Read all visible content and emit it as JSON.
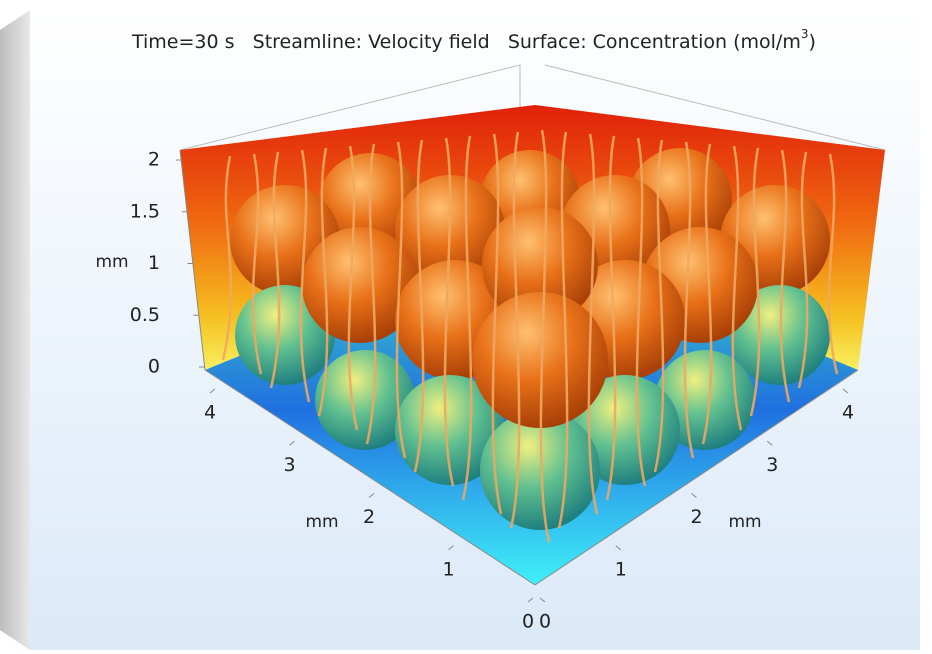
{
  "chart_data": {
    "type": "surface3d",
    "title": "Time=30 s   Streamline: Velocity field   Surface: Concentration (mol/m",
    "title_superscript": "3",
    "title_end": ")",
    "zlabel": "mm",
    "zlim": [
      0,
      2
    ],
    "zticks": [
      0,
      0.5,
      1,
      1.5,
      2
    ],
    "xlabel": "mm",
    "xlim": [
      0,
      4
    ],
    "xticks": [
      0,
      1,
      2,
      3,
      4
    ],
    "ylabel": "mm",
    "ylim": [
      0,
      4
    ],
    "yticks": [
      0,
      1,
      2,
      3,
      4
    ]
  }
}
